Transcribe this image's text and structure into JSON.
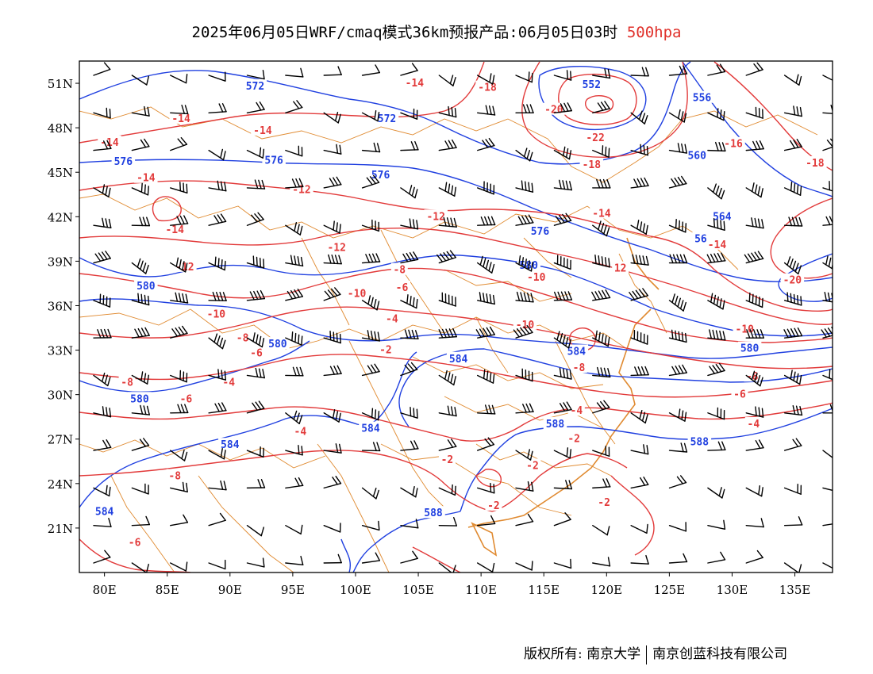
{
  "title": {
    "main": "2025年06月05日WRF/cmaq模式36km预报产品:06月05日03时",
    "level": "500hpa"
  },
  "axes": {
    "lat_labels": [
      "51N",
      "48N",
      "45N",
      "42N",
      "39N",
      "36N",
      "33N",
      "30N",
      "27N",
      "24N",
      "21N"
    ],
    "lon_labels": [
      "80E",
      "85E",
      "90E",
      "95E",
      "100E",
      "105E",
      "110E",
      "115E",
      "120E",
      "125E",
      "130E",
      "135E"
    ],
    "lat_range": [
      18,
      52.5
    ],
    "lon_range": [
      78,
      138
    ]
  },
  "colors": {
    "height_contour": "#2040e0",
    "temperature_contour": "#e23a3a",
    "boundaries": "#e08a30",
    "wind_barbs": "#000000"
  },
  "height_labels": [
    {
      "text": "572",
      "lon": 92,
      "lat": 50.8
    },
    {
      "text": "572",
      "lon": 102.5,
      "lat": 48.6
    },
    {
      "text": "552",
      "lon": 118.8,
      "lat": 50.9
    },
    {
      "text": "556",
      "lon": 127.6,
      "lat": 50.0
    },
    {
      "text": "576",
      "lon": 81.5,
      "lat": 45.7
    },
    {
      "text": "576",
      "lon": 93.5,
      "lat": 45.8
    },
    {
      "text": "576",
      "lon": 102,
      "lat": 44.8
    },
    {
      "text": "560",
      "lon": 127.2,
      "lat": 46.1
    },
    {
      "text": "564",
      "lon": 129.2,
      "lat": 42.0
    },
    {
      "text": "576",
      "lon": 114.7,
      "lat": 41.0
    },
    {
      "text": "56",
      "lon": 127.5,
      "lat": 40.5
    },
    {
      "text": "580",
      "lon": 113.8,
      "lat": 38.7
    },
    {
      "text": "580",
      "lon": 83.3,
      "lat": 37.3
    },
    {
      "text": "580",
      "lon": 93.8,
      "lat": 33.4
    },
    {
      "text": "584",
      "lon": 108.2,
      "lat": 32.4
    },
    {
      "text": "584",
      "lon": 117.6,
      "lat": 32.9
    },
    {
      "text": "580",
      "lon": 131.4,
      "lat": 33.1
    },
    {
      "text": "580",
      "lon": 82.8,
      "lat": 29.7
    },
    {
      "text": "584",
      "lon": 101.2,
      "lat": 27.7
    },
    {
      "text": "588",
      "lon": 115.9,
      "lat": 28.0
    },
    {
      "text": "584",
      "lon": 90,
      "lat": 26.6
    },
    {
      "text": "588",
      "lon": 127.4,
      "lat": 26.8
    },
    {
      "text": "584",
      "lon": 80,
      "lat": 22.1
    },
    {
      "text": "588",
      "lon": 106.2,
      "lat": 22.0
    }
  ],
  "temperature_labels": [
    {
      "text": "-14",
      "lon": 104.7,
      "lat": 51.0
    },
    {
      "text": "-18",
      "lon": 110.5,
      "lat": 50.7
    },
    {
      "text": "-20",
      "lon": 115.8,
      "lat": 49.2
    },
    {
      "text": "-22",
      "lon": 119.1,
      "lat": 47.3
    },
    {
      "text": "-16",
      "lon": 130.1,
      "lat": 46.9
    },
    {
      "text": "-18",
      "lon": 136.6,
      "lat": 45.6
    },
    {
      "text": "-18",
      "lon": 118.8,
      "lat": 45.5
    },
    {
      "text": "-14",
      "lon": 86.1,
      "lat": 48.6
    },
    {
      "text": "-14",
      "lon": 80.4,
      "lat": 47.0
    },
    {
      "text": "-14",
      "lon": 92.6,
      "lat": 47.8
    },
    {
      "text": "-14",
      "lon": 83.3,
      "lat": 44.6
    },
    {
      "text": "-12",
      "lon": 95.7,
      "lat": 43.8
    },
    {
      "text": "-12",
      "lon": 106.4,
      "lat": 42.0
    },
    {
      "text": "-14",
      "lon": 119.6,
      "lat": 42.2
    },
    {
      "text": "-14",
      "lon": 85.6,
      "lat": 41.1
    },
    {
      "text": "-14",
      "lon": 128.8,
      "lat": 40.1
    },
    {
      "text": "-12",
      "lon": 98.5,
      "lat": 39.9
    },
    {
      "text": "-12",
      "lon": 86.4,
      "lat": 38.6
    },
    {
      "text": "-8",
      "lon": 103.5,
      "lat": 38.4
    },
    {
      "text": "12",
      "lon": 121.1,
      "lat": 38.5
    },
    {
      "text": "-10",
      "lon": 114.4,
      "lat": 37.9
    },
    {
      "text": "-6",
      "lon": 103.7,
      "lat": 37.2
    },
    {
      "text": "-20",
      "lon": 134.8,
      "lat": 37.7
    },
    {
      "text": "-10",
      "lon": 100.1,
      "lat": 36.8
    },
    {
      "text": "-10",
      "lon": 88.9,
      "lat": 35.4
    },
    {
      "text": "-4",
      "lon": 102.9,
      "lat": 35.1
    },
    {
      "text": "-10",
      "lon": 113.5,
      "lat": 34.7
    },
    {
      "text": "-10",
      "lon": 131.0,
      "lat": 34.4
    },
    {
      "text": "-8",
      "lon": 91.0,
      "lat": 33.8
    },
    {
      "text": "-6",
      "lon": 92.1,
      "lat": 32.8
    },
    {
      "text": "-2",
      "lon": 102.4,
      "lat": 33.0
    },
    {
      "text": "-8",
      "lon": 117.8,
      "lat": 31.8
    },
    {
      "text": "-4",
      "lon": 89.9,
      "lat": 30.8
    },
    {
      "text": "-8",
      "lon": 131.6,
      "lat": 31.2
    },
    {
      "text": "-8",
      "lon": 81.8,
      "lat": 30.8
    },
    {
      "text": "-6",
      "lon": 130.6,
      "lat": 30.0
    },
    {
      "text": "-6",
      "lon": 86.5,
      "lat": 29.7
    },
    {
      "text": "-4",
      "lon": 117.6,
      "lat": 28.9
    },
    {
      "text": "-4",
      "lon": 131.7,
      "lat": 28.0
    },
    {
      "text": "-4",
      "lon": 95.6,
      "lat": 27.5
    },
    {
      "text": "-2",
      "lon": 117.4,
      "lat": 27.0
    },
    {
      "text": "-2",
      "lon": 107.3,
      "lat": 25.6
    },
    {
      "text": "-2",
      "lon": 114.1,
      "lat": 25.2
    },
    {
      "text": "-8",
      "lon": 85.6,
      "lat": 24.5
    },
    {
      "text": "-2",
      "lon": 119.8,
      "lat": 22.7
    },
    {
      "text": "-2",
      "lon": 111.0,
      "lat": 22.5
    },
    {
      "text": "-6",
      "lon": 82.4,
      "lat": 20.0
    }
  ],
  "copyright": {
    "left": "版权所有: 南京大学",
    "right": "南京创蓝科技有限公司"
  }
}
